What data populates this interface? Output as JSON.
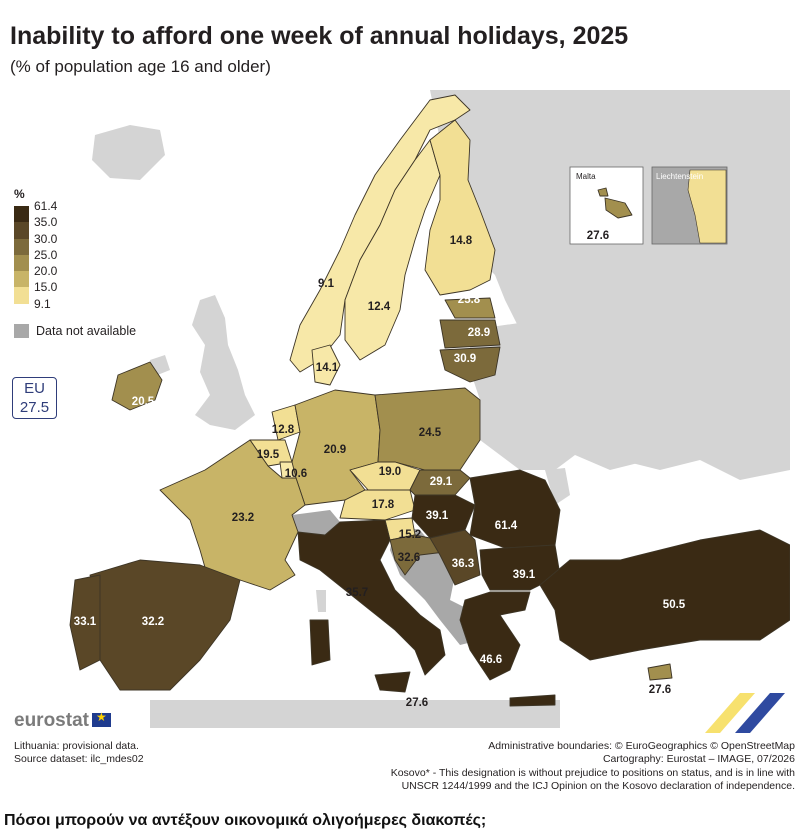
{
  "title": "Inability to afford one week of annual holidays, 2025",
  "subtitle": "(% of population age 16 and older)",
  "legend": {
    "unit": "%",
    "bins": [
      {
        "label": "61.4",
        "color": "#3a2a14"
      },
      {
        "label": "35.0",
        "color": "#5a4727"
      },
      {
        "label": "30.0",
        "color": "#7c6a3b"
      },
      {
        "label": "25.0",
        "color": "#a28f4e"
      },
      {
        "label": "20.0",
        "color": "#c8b467"
      },
      {
        "label": "15.0",
        "color": "#f2df94"
      }
    ],
    "min_label": "9.1",
    "na_label": "Data not available",
    "na_color": "#a8a8a8"
  },
  "eu": {
    "label": "EU",
    "value": "27.5"
  },
  "insets": {
    "malta": {
      "name": "Malta",
      "value": "27.6"
    },
    "liechtenstein": {
      "name": "Liechtenstein"
    }
  },
  "values": {
    "NO": "9.1",
    "SE": "12.4",
    "FI": "14.8",
    "DK": "14.1",
    "EE": "25.8",
    "LV": "28.9",
    "LT": "30.9",
    "IE": "20.5",
    "NL": "12.8",
    "BE": "19.5",
    "LU": "10.6",
    "DE": "20.9",
    "PL": "24.5",
    "CZ": "19.0",
    "SK": "29.1",
    "AT": "17.8",
    "SI": "15.2",
    "HR": "32.6",
    "HU": "39.1",
    "RO": "61.4",
    "RS": "36.3",
    "BG": "39.1",
    "FR": "23.2",
    "IT": "35.7",
    "ES": "32.2",
    "PT": "33.1",
    "GR": "46.6",
    "TR": "50.5",
    "CY": "27.6",
    "MT_S": "27.6"
  },
  "brand": "eurostat",
  "notes_left": [
    "Lithuania: provisional data.",
    "Source dataset: ilc_mdes02"
  ],
  "notes_right": [
    "Administrative boundaries: © EuroGeographics © OpenStreetMap",
    "Cartography: Eurostat – IMAGE, 07/2026",
    "Kosovo* - This designation is without prejudice to positions on status, and is in line with",
    "UNSCR 1244/1999 and the ICJ Opinion on the Kosovo declaration of independence."
  ],
  "caption": "Πόσοι μπορούν να αντέξουν οικονομικά ολιγοήμερες διακοπές;"
}
